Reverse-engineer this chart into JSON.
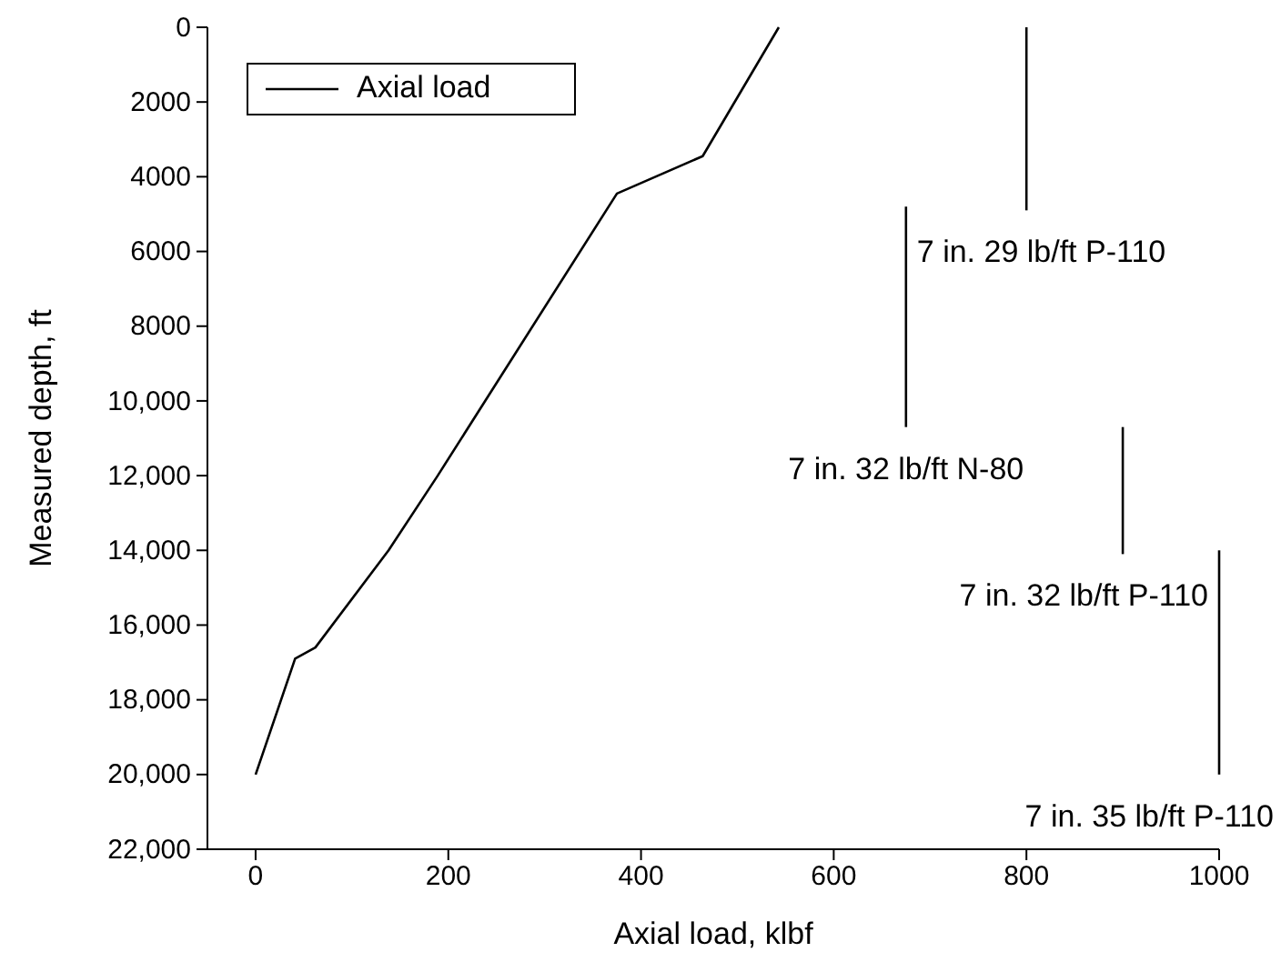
{
  "chart_data": {
    "type": "line",
    "xlabel": "Axial load, klbf",
    "ylabel": "Measured depth, ft",
    "xlim": [
      -50,
      1000
    ],
    "xticks": [
      0,
      200,
      400,
      600,
      800,
      1000
    ],
    "ylim": [
      22000,
      0
    ],
    "yticks": [
      0,
      2000,
      4000,
      6000,
      8000,
      {
        "value": 10000,
        "label": "10,000"
      },
      {
        "value": 12000,
        "label": "12,000"
      },
      {
        "value": 14000,
        "label": "14,000"
      },
      {
        "value": 16000,
        "label": "16,000"
      },
      {
        "value": 18000,
        "label": "18,000"
      },
      {
        "value": 20000,
        "label": "20,000"
      },
      {
        "value": 22000,
        "label": "22,000"
      }
    ],
    "series": [
      {
        "name": "Axial load",
        "color": "#000000",
        "x": [
          0,
          41,
          62,
          138,
          189,
          375,
          464,
          543
        ],
        "values": [
          20000,
          16900,
          16600,
          14000,
          12000,
          4450,
          3450,
          0
        ]
      },
      {
        "color": "#000000",
        "x": [
          800,
          800
        ],
        "values": [
          0,
          4900
        ]
      },
      {
        "color": "#000000",
        "x": [
          675,
          675
        ],
        "values": [
          4800,
          10700
        ]
      },
      {
        "color": "#000000",
        "x": [
          900,
          900
        ],
        "values": [
          10700,
          14100
        ]
      },
      {
        "color": "#000000",
        "x": [
          1000,
          1000
        ],
        "values": [
          14000,
          20000
        ]
      }
    ],
    "annotations": [
      {
        "text": "7 in. 29 lb/ft P-110",
        "x": 800,
        "y": 4900
      },
      {
        "text": "7 in. 32 lb/ft N-80",
        "x": 675,
        "y": 10700
      },
      {
        "text": "7 in. 32 lb/ft P-110",
        "x": 900,
        "y": 14100
      },
      {
        "text": "7 in. 35 lb/ft P-110",
        "x": 1000,
        "y": 20000
      }
    ],
    "legend": "top left",
    "grid": false,
    "marker": "none",
    "line_style": "solid"
  }
}
